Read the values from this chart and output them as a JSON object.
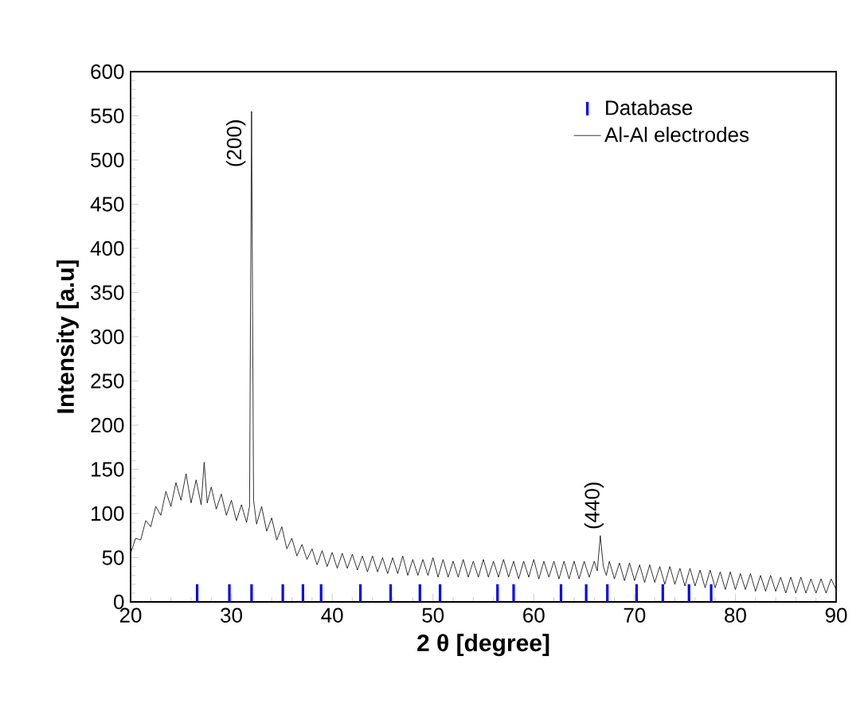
{
  "chart_data": {
    "type": "line",
    "xlabel": "2 θ  [degree]",
    "ylabel": "Intensity [a.u]",
    "xlim": [
      20,
      90
    ],
    "ylim": [
      0,
      600
    ],
    "xticks": [
      20,
      30,
      40,
      50,
      60,
      70,
      80,
      90
    ],
    "yticks": [
      0,
      50,
      100,
      150,
      200,
      250,
      300,
      350,
      400,
      450,
      500,
      550,
      600
    ],
    "grid": false,
    "legend": "top right",
    "marker": "none",
    "line_style": "solid",
    "annotations": [
      {
        "text": "(200)",
        "x": 32,
        "y": 555
      },
      {
        "text": "(440)",
        "x": 66.6,
        "y": 75
      }
    ],
    "series": [
      {
        "name": "Database",
        "type": "bar",
        "color": "#0000ff",
        "x": [
          26.6,
          29.8,
          32.0,
          35.1,
          37.1,
          38.9,
          42.8,
          45.8,
          48.7,
          50.7,
          56.4,
          58.0,
          62.7,
          65.2,
          67.3,
          70.2,
          72.8,
          75.4,
          77.6
        ],
        "values": [
          20,
          20,
          20,
          20,
          20,
          20,
          20,
          20,
          20,
          20,
          20,
          20,
          20,
          20,
          20,
          20,
          20,
          20,
          20
        ]
      },
      {
        "name": "Al-Al electrodes",
        "color": "#000000",
        "x": [
          20,
          20.5,
          21,
          21.5,
          22,
          22.5,
          23,
          23.5,
          24,
          24.5,
          25,
          25.5,
          26,
          26.5,
          27,
          27.3,
          27.6,
          28,
          28.5,
          29,
          29.5,
          30,
          30.5,
          31,
          31.5,
          31.8,
          32,
          32.2,
          32.5,
          33,
          33.5,
          34,
          34.5,
          35,
          35.5,
          36,
          36.5,
          37,
          37.5,
          38,
          38.5,
          39,
          39.5,
          40,
          40.5,
          41,
          41.5,
          42,
          42.5,
          43,
          43.5,
          44,
          44.5,
          45,
          45.5,
          46,
          46.5,
          47,
          47.5,
          48,
          48.5,
          49,
          49.5,
          50,
          50.5,
          51,
          51.5,
          52,
          52.5,
          53,
          53.5,
          54,
          54.5,
          55,
          55.5,
          56,
          56.5,
          57,
          57.5,
          58,
          58.5,
          59,
          59.5,
          60,
          60.5,
          61,
          61.5,
          62,
          62.5,
          63,
          63.5,
          64,
          64.5,
          65,
          65.5,
          66,
          66.3,
          66.6,
          66.9,
          67.2,
          67.5,
          68,
          68.5,
          69,
          69.5,
          70,
          70.5,
          71,
          71.5,
          72,
          72.5,
          73,
          73.5,
          74,
          74.5,
          75,
          75.5,
          76,
          76.5,
          77,
          77.5,
          78,
          78.5,
          79,
          79.5,
          80,
          80.5,
          81,
          81.5,
          82,
          82.5,
          83,
          83.5,
          84,
          84.5,
          85,
          85.5,
          86,
          86.5,
          87,
          87.5,
          88,
          88.5,
          89,
          89.5,
          90
        ],
        "values": [
          55,
          72,
          70,
          92,
          85,
          108,
          98,
          125,
          108,
          135,
          115,
          145,
          112,
          138,
          110,
          158,
          112,
          130,
          105,
          122,
          98,
          115,
          92,
          110,
          90,
          108,
          555,
          115,
          88,
          108,
          80,
          95,
          70,
          85,
          60,
          72,
          52,
          65,
          48,
          60,
          42,
          58,
          40,
          56,
          38,
          55,
          38,
          54,
          36,
          52,
          34,
          52,
          34,
          50,
          32,
          50,
          32,
          52,
          30,
          48,
          30,
          48,
          30,
          50,
          28,
          48,
          28,
          46,
          28,
          48,
          28,
          46,
          28,
          48,
          28,
          46,
          28,
          48,
          28,
          46,
          26,
          46,
          28,
          48,
          26,
          46,
          28,
          46,
          26,
          46,
          26,
          46,
          26,
          46,
          28,
          46,
          35,
          75,
          40,
          30,
          46,
          26,
          44,
          24,
          44,
          24,
          42,
          22,
          42,
          22,
          40,
          20,
          40,
          20,
          38,
          18,
          38,
          18,
          36,
          16,
          36,
          16,
          34,
          14,
          34,
          14,
          32,
          14,
          32,
          12,
          30,
          12,
          30,
          12,
          28,
          10,
          28,
          10,
          28,
          10,
          26,
          10,
          26,
          10,
          26,
          14
        ]
      }
    ]
  }
}
